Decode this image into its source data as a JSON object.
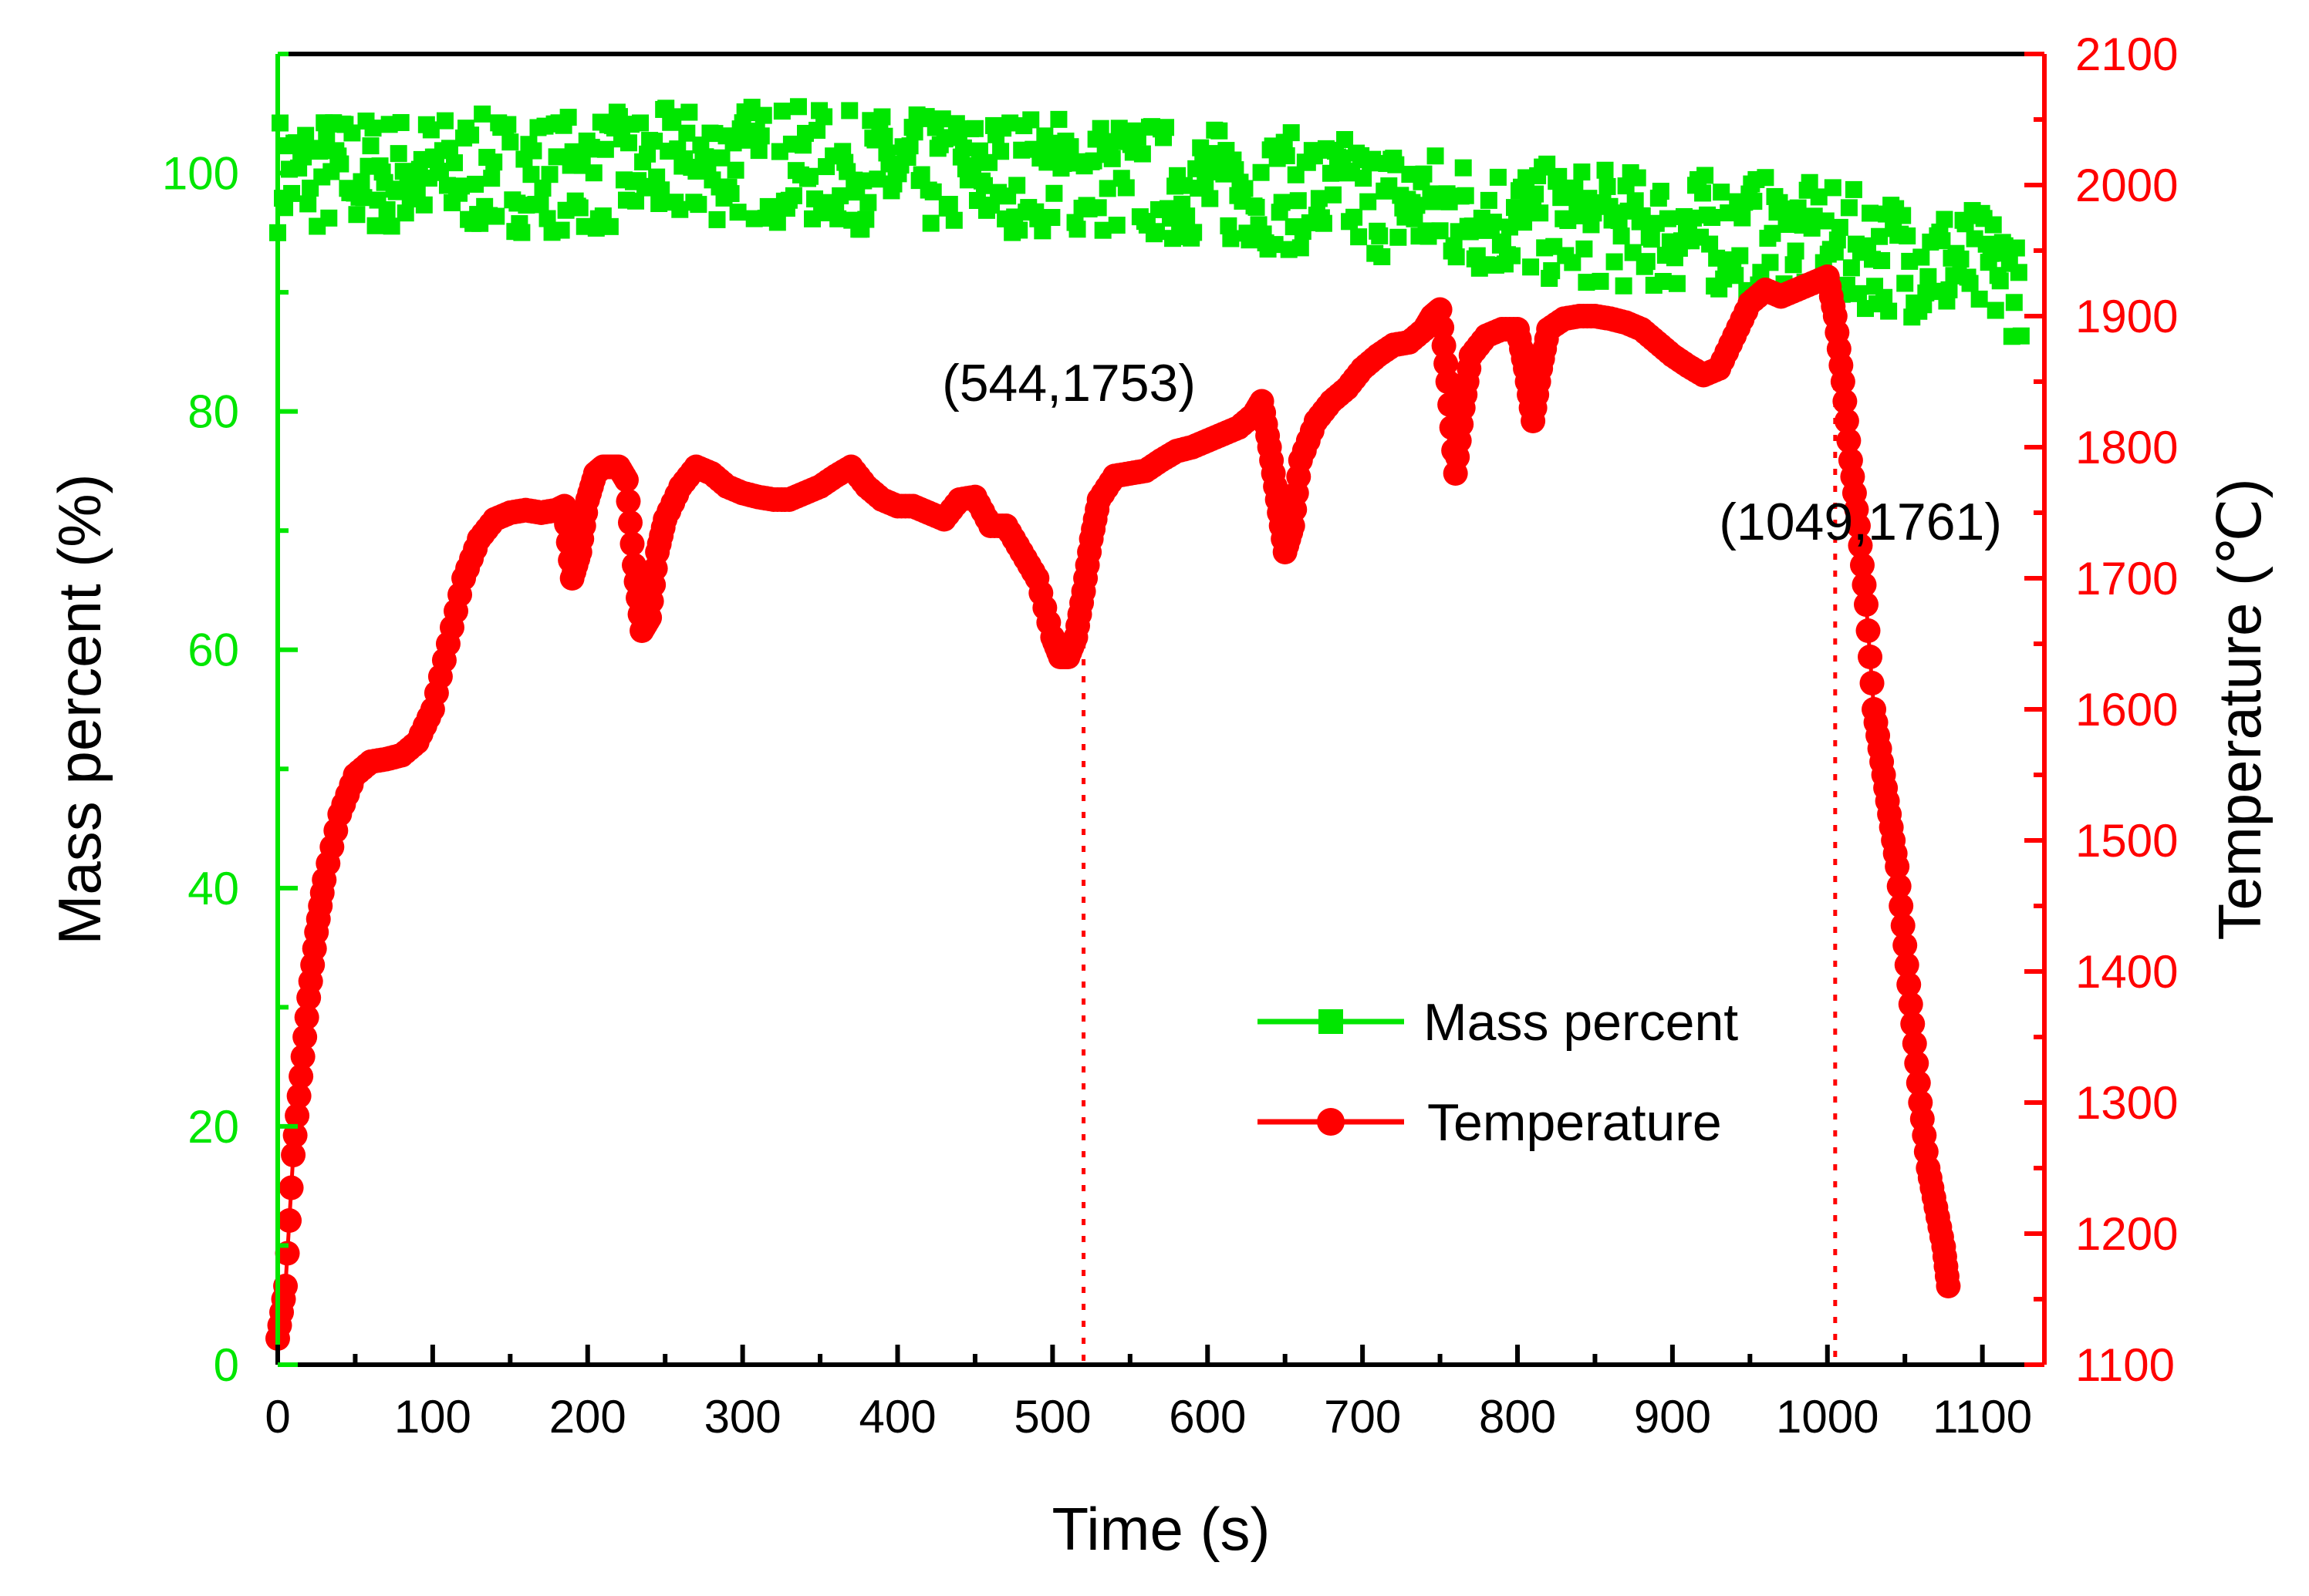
{
  "chart_data": {
    "type": "scatter",
    "xlabel": "Time (s)",
    "ylabel_left": "Mass percent (%)",
    "ylabel_right": "Temperature (℃)",
    "xlim": [
      0,
      1140
    ],
    "ylim_left": [
      0,
      110
    ],
    "ylim_right": [
      1100,
      2100
    ],
    "x_ticks": [
      "0",
      "100",
      "200",
      "300",
      "400",
      "500",
      "600",
      "700",
      "800",
      "900",
      "1000",
      "1100"
    ],
    "y_left_ticks": [
      "0",
      "20",
      "40",
      "60",
      "80",
      "100"
    ],
    "y_right_ticks": [
      "1100",
      "1200",
      "1300",
      "1400",
      "1500",
      "1600",
      "1700",
      "1800",
      "1900",
      "2000",
      "2100"
    ],
    "grid": false,
    "legend_position": "bottom-right",
    "colors": {
      "mass": "#00e600",
      "temperature": "#ff0000",
      "axis": "#000000"
    },
    "series": [
      {
        "name": "Mass percent",
        "axis": "left",
        "marker": "square",
        "x_range": [
          0,
          1125
        ],
        "trend_x": [
          0,
          100,
          200,
          300,
          400,
          500,
          600,
          700,
          800,
          900,
          950,
          1000,
          1050,
          1100,
          1125
        ],
        "trend_y": [
          100,
          100,
          100,
          101,
          100,
          100,
          99,
          98,
          96,
          95,
          95,
          94,
          93,
          92,
          91
        ],
        "spread": 5
      },
      {
        "name": "Temperature",
        "axis": "right",
        "marker": "circle",
        "x": [
          0,
          5,
          10,
          15,
          20,
          25,
          30,
          40,
          50,
          60,
          70,
          80,
          90,
          100,
          110,
          120,
          130,
          140,
          150,
          160,
          170,
          180,
          185,
          190,
          195,
          200,
          205,
          210,
          215,
          220,
          225,
          230,
          235,
          240,
          245,
          250,
          260,
          270,
          280,
          290,
          300,
          310,
          320,
          330,
          340,
          350,
          360,
          370,
          380,
          390,
          400,
          410,
          420,
          430,
          440,
          450,
          460,
          470,
          480,
          490,
          500,
          505,
          510,
          515,
          520,
          525,
          530,
          540,
          550,
          560,
          570,
          580,
          590,
          600,
          610,
          620,
          630,
          635,
          640,
          645,
          650,
          655,
          660,
          670,
          680,
          690,
          700,
          710,
          720,
          730,
          740,
          745,
          750,
          755,
          760,
          765,
          770,
          780,
          790,
          800,
          805,
          810,
          815,
          820,
          830,
          840,
          850,
          860,
          870,
          880,
          890,
          900,
          910,
          920,
          930,
          940,
          950,
          960,
          970,
          980,
          990,
          1000,
          1005,
          1010,
          1015,
          1020,
          1025,
          1030,
          1035,
          1040,
          1045,
          1050,
          1055,
          1060,
          1065,
          1070,
          1075,
          1078
        ],
        "y": [
          1120,
          1160,
          1260,
          1320,
          1380,
          1430,
          1470,
          1520,
          1550,
          1560,
          1562,
          1565,
          1575,
          1600,
          1650,
          1700,
          1730,
          1745,
          1750,
          1752,
          1750,
          1752,
          1755,
          1700,
          1720,
          1760,
          1780,
          1785,
          1785,
          1785,
          1775,
          1710,
          1660,
          1670,
          1720,
          1745,
          1770,
          1785,
          1780,
          1770,
          1765,
          1762,
          1760,
          1760,
          1765,
          1770,
          1778,
          1785,
          1770,
          1760,
          1755,
          1755,
          1750,
          1745,
          1760,
          1762,
          1740,
          1740,
          1720,
          1700,
          1655,
          1640,
          1640,
          1655,
          1690,
          1730,
          1760,
          1778,
          1780,
          1782,
          1790,
          1797,
          1800,
          1805,
          1810,
          1815,
          1825,
          1835,
          1800,
          1760,
          1720,
          1740,
          1790,
          1820,
          1835,
          1845,
          1860,
          1870,
          1878,
          1880,
          1890,
          1900,
          1905,
          1850,
          1780,
          1830,
          1870,
          1885,
          1890,
          1890,
          1860,
          1820,
          1860,
          1890,
          1898,
          1900,
          1900,
          1898,
          1895,
          1890,
          1880,
          1870,
          1862,
          1855,
          1860,
          1885,
          1910,
          1920,
          1915,
          1920,
          1925,
          1930,
          1900,
          1850,
          1790,
          1740,
          1680,
          1600,
          1560,
          1520,
          1480,
          1420,
          1360,
          1300,
          1250,
          1220,
          1190,
          1160
        ],
        "annotations": [
          {
            "label": "(544,1753)",
            "x": 520
          },
          {
            "label": "(1049,1761)",
            "x": 1005
          }
        ]
      }
    ]
  }
}
